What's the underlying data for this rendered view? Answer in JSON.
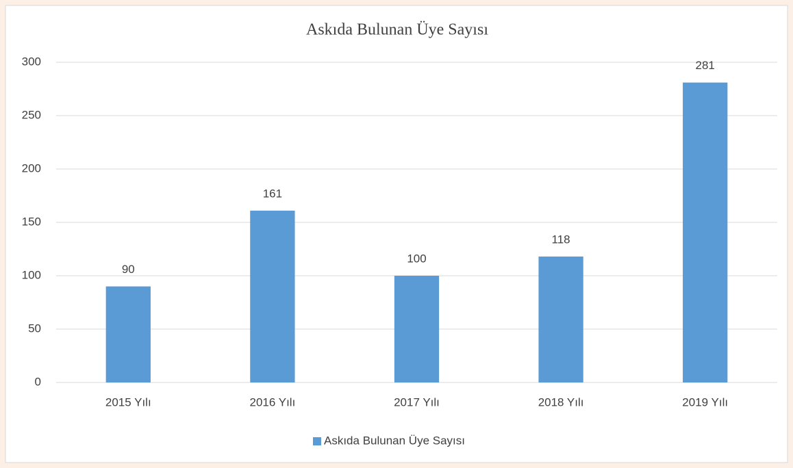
{
  "chart_data": {
    "type": "bar",
    "title": "Askıda Bulunan Üye Sayısı",
    "categories": [
      "2015 Yılı",
      "2016 Yılı",
      "2017 Yılı",
      "2018 Yılı",
      "2019 Yılı"
    ],
    "series": [
      {
        "name": "Askıda Bulunan Üye Sayısı",
        "color": "#5b9bd5",
        "values": [
          90,
          161,
          100,
          118,
          281
        ]
      }
    ],
    "ylim": [
      0,
      300
    ],
    "yticks": [
      0,
      50,
      100,
      150,
      200,
      250,
      300
    ],
    "grid": true,
    "legend": "bottom"
  }
}
